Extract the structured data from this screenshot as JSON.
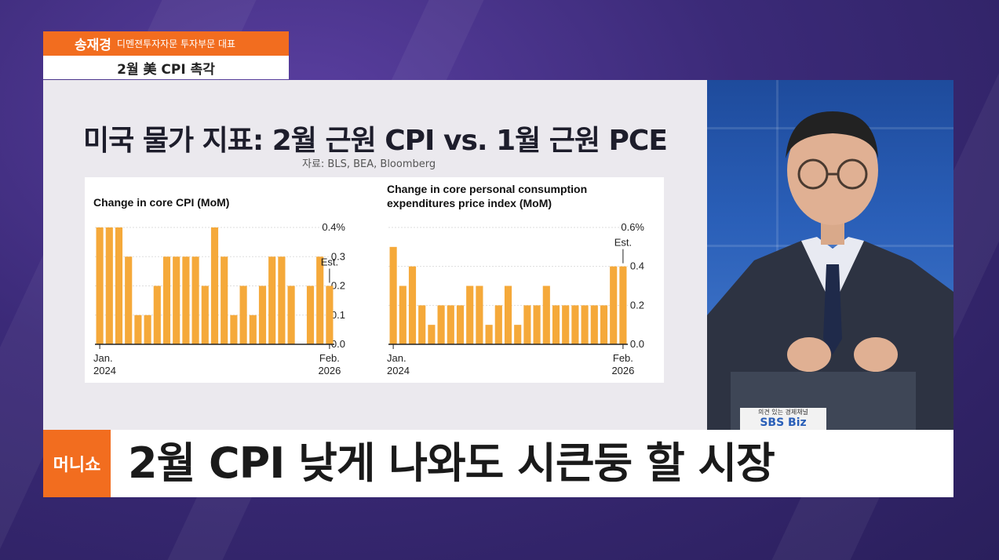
{
  "name_tag": {
    "name": "송재경",
    "title": "디멘젼투자자문 투자부문 대표",
    "topic": "2월 美 CPI 촉각"
  },
  "slide": {
    "title": "미국 물가 지표: 2월 근원 CPI vs. 1월 근원 PCE",
    "source": "자료: BLS, BEA, Bloomberg"
  },
  "studio": {
    "desk_tagline": "의견 있는 경제채널",
    "desk_logo": "SBS Biz"
  },
  "headline": {
    "logo": "머니쇼",
    "text": "2월 CPI 낮게 나와도 시큰둥 할 시장"
  },
  "colors": {
    "accent": "#f26d1f",
    "bar": "#f5a93a"
  },
  "chart_data": [
    {
      "type": "bar",
      "title": "Change in core CPI (MoM)",
      "ylim": [
        0,
        0.4
      ],
      "yticks": [
        "0.4%",
        "0.3",
        "0.2",
        "0.1",
        "0.0"
      ],
      "xlabels": [
        [
          "Jan.",
          "2024"
        ],
        [
          "Feb.",
          "2026"
        ]
      ],
      "annotation": "Est.",
      "values": [
        0.4,
        0.4,
        0.4,
        0.3,
        0.1,
        0.1,
        0.2,
        0.3,
        0.3,
        0.3,
        0.3,
        0.2,
        0.4,
        0.3,
        0.1,
        0.2,
        0.1,
        0.2,
        0.3,
        0.3,
        0.2,
        0.0,
        0.2,
        0.3,
        0.2
      ],
      "grid": true
    },
    {
      "type": "bar",
      "title": "Change in core personal consumption expenditures price index (MoM)",
      "title_lines": [
        "Change in core personal consumption",
        "expenditures price index (MoM)"
      ],
      "ylim": [
        0,
        0.6
      ],
      "yticks": [
        "0.6%",
        "0.4",
        "0.2",
        "0.0"
      ],
      "xlabels": [
        [
          "Jan.",
          "2024"
        ],
        [
          "Feb.",
          "2026"
        ]
      ],
      "annotation": "Est.",
      "values": [
        0.5,
        0.3,
        0.4,
        0.2,
        0.1,
        0.2,
        0.2,
        0.2,
        0.3,
        0.3,
        0.1,
        0.2,
        0.3,
        0.1,
        0.2,
        0.2,
        0.3,
        0.2,
        0.2,
        0.2,
        0.2,
        0.2,
        0.2,
        0.4,
        0.4
      ],
      "grid": true
    }
  ]
}
